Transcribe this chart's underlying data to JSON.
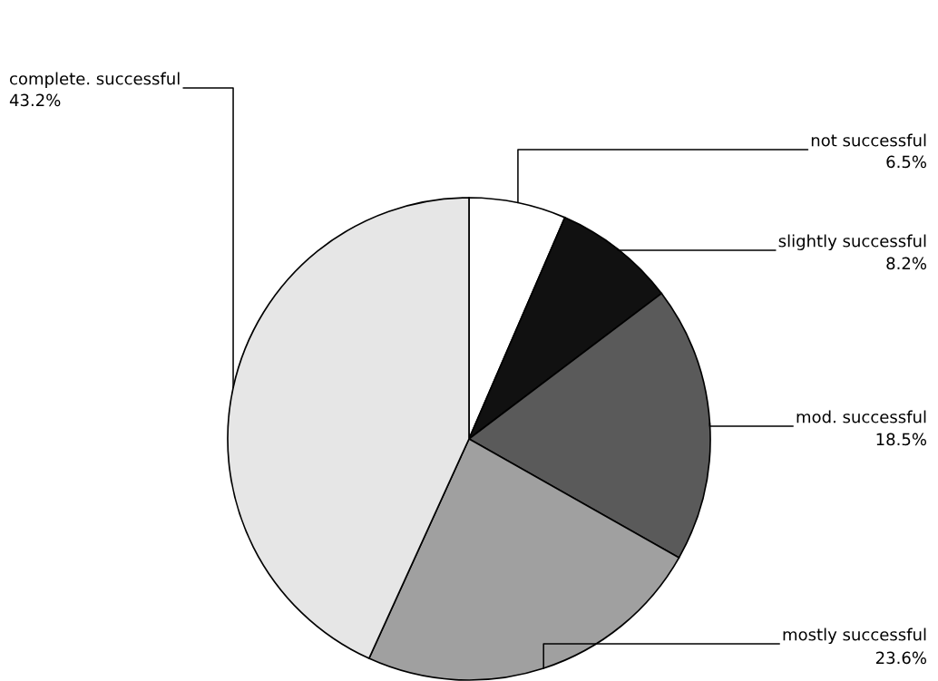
{
  "chart_data": {
    "type": "pie",
    "categories": [
      "not successful",
      "slightly successful",
      "mod. successful",
      "mostly successful",
      "complete. successful"
    ],
    "values": [
      6.5,
      8.2,
      18.5,
      23.6,
      43.2
    ],
    "value_labels": [
      "6.5%",
      "8.2%",
      "18.5%",
      "23.6%",
      "43.2%"
    ],
    "colors": [
      "#ffffff",
      "#111111",
      "#5a5a5a",
      "#a0a0a0",
      "#e6e6e6"
    ]
  }
}
